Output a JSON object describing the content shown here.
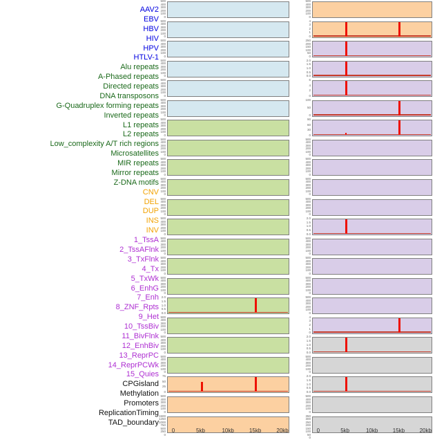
{
  "groups": {
    "virus": {
      "label_color": "#0000e0",
      "panel_bg": "#d5e8f0"
    },
    "repeat": {
      "label_color": "#1a691a",
      "panel_bg": "#c9e0a2"
    },
    "structural_variant": {
      "label_color": "#f2a202",
      "panel_bg": "#fcd0a1"
    },
    "chromatin_state": {
      "label_color": "#ae2fd2",
      "panel_bg": "#d9cde8"
    },
    "regulatory": {
      "label_color": "#111111",
      "panel_bg": "#d6d6d6"
    }
  },
  "colors": {
    "spike_red": "#ee1100",
    "baseline_red": "#c43b2a",
    "panel_border": "#7f7f7f",
    "tick_text": "#666666",
    "axis_text": "#333333"
  },
  "chart_data": {
    "type": "line",
    "description": "44 mini signal-profile panels over a 0-20kb window, arranged in two columns of 22 (column-major order matching the 44 feature labels). Red spikes mark enrichment peaks at 5kb and 15kb.",
    "x_axis": {
      "ticks": [
        "0",
        "5kb",
        "10kb",
        "15kb",
        "20kb"
      ],
      "range_kb": [
        0,
        20
      ]
    },
    "layout_hint": {
      "columns": 2,
      "rows_per_column": 22,
      "order": "column-major"
    },
    "rows": [
      {
        "label": "AAV2",
        "group": "virus",
        "yticks": [
          "500",
          "400",
          "300",
          "200",
          "100",
          "0"
        ],
        "spikes": [],
        "baseline": false
      },
      {
        "label": "EBV",
        "group": "virus",
        "yticks": [
          "500",
          "400",
          "300",
          "200",
          "100",
          "0"
        ],
        "spikes": [],
        "baseline": false
      },
      {
        "label": "HBV",
        "group": "virus",
        "yticks": [
          "500",
          "400",
          "300",
          "200",
          "100",
          "0"
        ],
        "spikes": [],
        "baseline": false
      },
      {
        "label": "HIV",
        "group": "virus",
        "yticks": [
          "500",
          "400",
          "300",
          "200",
          "100",
          "0"
        ],
        "spikes": [],
        "baseline": false
      },
      {
        "label": "HPV",
        "group": "virus",
        "yticks": [
          "500",
          "400",
          "300",
          "200",
          "100",
          "0"
        ],
        "spikes": [],
        "baseline": false
      },
      {
        "label": "HTLV-1",
        "group": "virus",
        "yticks": [
          "500",
          "400",
          "300",
          "200",
          "100",
          "0"
        ],
        "spikes": [],
        "baseline": false
      },
      {
        "label": "Alu repeats",
        "group": "repeat",
        "yticks": [
          "500",
          "400",
          "300",
          "200",
          "100",
          "0"
        ],
        "spikes": [],
        "baseline": false
      },
      {
        "label": "A-Phased repeats",
        "group": "repeat",
        "yticks": [
          "500",
          "400",
          "300",
          "200",
          "100",
          "0"
        ],
        "spikes": [],
        "baseline": false
      },
      {
        "label": "Directed repeats",
        "group": "repeat",
        "yticks": [
          "500",
          "400",
          "300",
          "200",
          "100",
          "0"
        ],
        "spikes": [],
        "baseline": false
      },
      {
        "label": "DNA transposons",
        "group": "repeat",
        "yticks": [
          "500",
          "400",
          "300",
          "200",
          "100",
          "0"
        ],
        "spikes": [],
        "baseline": false
      },
      {
        "label": "G-Quadruplex forming repeats",
        "group": "repeat",
        "yticks": [
          "500",
          "400",
          "300",
          "200",
          "100",
          "0"
        ],
        "spikes": [],
        "baseline": false
      },
      {
        "label": "Inverted repeats",
        "group": "repeat",
        "yticks": [
          "500",
          "400",
          "300",
          "200",
          "100",
          "0"
        ],
        "spikes": [],
        "baseline": false
      },
      {
        "label": "L1 repeats",
        "group": "repeat",
        "yticks": [
          "500",
          "400",
          "300",
          "200",
          "100",
          "0"
        ],
        "spikes": [],
        "baseline": false
      },
      {
        "label": "L2 repeats",
        "group": "repeat",
        "yticks": [
          "500",
          "400",
          "300",
          "200",
          "100",
          "0"
        ],
        "spikes": [],
        "baseline": false
      },
      {
        "label": "Low_complexity A/T rich regions",
        "group": "repeat",
        "yticks": [
          "500",
          "400",
          "300",
          "200",
          "100",
          "0"
        ],
        "spikes": [],
        "baseline": false
      },
      {
        "label": "Microsatellites",
        "group": "repeat",
        "yticks": [
          "2.0",
          "1.5",
          "1.0",
          "0.5",
          "0.0"
        ],
        "spikes": [
          {
            "x_kb": 15,
            "rel_height": 1.0
          }
        ],
        "baseline": true
      },
      {
        "label": "MIR repeats",
        "group": "repeat",
        "yticks": [
          "500",
          "400",
          "300",
          "200",
          "100",
          "0"
        ],
        "spikes": [],
        "baseline": false
      },
      {
        "label": "Mirror repeats",
        "group": "repeat",
        "yticks": [
          "500",
          "400",
          "300",
          "200",
          "100",
          "0"
        ],
        "spikes": [],
        "baseline": false
      },
      {
        "label": "Z-DNA motifs",
        "group": "repeat",
        "yticks": [
          "500",
          "400",
          "300",
          "200",
          "100",
          "0"
        ],
        "spikes": [],
        "baseline": false
      },
      {
        "label": "CNV",
        "group": "structural_variant",
        "yticks": [
          "75",
          "50",
          "25",
          "0"
        ],
        "spikes": [
          {
            "x_kb": 5,
            "rel_height": 0.65
          },
          {
            "x_kb": 15,
            "rel_height": 1.0
          }
        ],
        "baseline": true
      },
      {
        "label": "DEL",
        "group": "structural_variant",
        "yticks": [
          "500",
          "400",
          "300",
          "200",
          "100",
          "0"
        ],
        "spikes": [],
        "baseline": false
      },
      {
        "label": "DUP",
        "group": "structural_variant",
        "yticks": [
          "1500",
          "1250",
          "1000",
          "750",
          "500",
          "250",
          "0"
        ],
        "spikes": [],
        "baseline": false
      },
      {
        "label": "INS",
        "group": "structural_variant",
        "yticks": [
          "500",
          "400",
          "300",
          "200",
          "100",
          "0"
        ],
        "spikes": [],
        "baseline": false
      },
      {
        "label": "INV",
        "group": "structural_variant",
        "yticks": [
          "4",
          "3",
          "2",
          "1",
          "0"
        ],
        "spikes": [
          {
            "x_kb": 5,
            "rel_height": 1.0
          },
          {
            "x_kb": 15,
            "rel_height": 1.0
          }
        ],
        "baseline": true
      },
      {
        "label": "1_TssA",
        "group": "chromatin_state",
        "yticks": [
          "250",
          "200",
          "150",
          "100",
          "50",
          "0"
        ],
        "spikes": [
          {
            "x_kb": 5,
            "rel_height": 1.0
          }
        ],
        "baseline": true
      },
      {
        "label": "2_TssAFlnk",
        "group": "chromatin_state",
        "yticks": [
          "2.0",
          "1.5",
          "1.0",
          "0.5",
          "0.0"
        ],
        "spikes": [
          {
            "x_kb": 5,
            "rel_height": 1.0
          }
        ],
        "baseline": true
      },
      {
        "label": "3_TxFlnk",
        "group": "chromatin_state",
        "yticks": [
          "6",
          "4",
          "2",
          "0"
        ],
        "spikes": [
          {
            "x_kb": 5,
            "rel_height": 1.0
          }
        ],
        "baseline": true
      },
      {
        "label": "4_Tx",
        "group": "chromatin_state",
        "yticks": [
          "100",
          "50",
          "0"
        ],
        "spikes": [
          {
            "x_kb": 15,
            "rel_height": 1.0
          }
        ],
        "baseline": true
      },
      {
        "label": "5_TxWk",
        "group": "chromatin_state",
        "yticks": [
          "90",
          "60",
          "30",
          "0"
        ],
        "spikes": [
          {
            "x_kb": 5,
            "rel_height": 0.15
          },
          {
            "x_kb": 15,
            "rel_height": 1.0
          }
        ],
        "baseline": true
      },
      {
        "label": "6_EnhG",
        "group": "chromatin_state",
        "yticks": [
          "500",
          "400",
          "300",
          "200",
          "100",
          "0"
        ],
        "spikes": [],
        "baseline": false
      },
      {
        "label": "7_Enh",
        "group": "chromatin_state",
        "yticks": [
          "500",
          "400",
          "300",
          "200",
          "100",
          "0"
        ],
        "spikes": [],
        "baseline": false
      },
      {
        "label": "8_ZNF_Rpts",
        "group": "chromatin_state",
        "yticks": [
          "500",
          "400",
          "300",
          "200",
          "100",
          "0"
        ],
        "spikes": [],
        "baseline": false
      },
      {
        "label": "9_Het",
        "group": "chromatin_state",
        "yticks": [
          "500",
          "400",
          "300",
          "200",
          "100",
          "0"
        ],
        "spikes": [],
        "baseline": false
      },
      {
        "label": "10_TssBiv",
        "group": "chromatin_state",
        "yticks": [
          "2.0",
          "1.5",
          "1.0",
          "0.5",
          "0.0"
        ],
        "spikes": [
          {
            "x_kb": 5,
            "rel_height": 1.0
          }
        ],
        "baseline": true
      },
      {
        "label": "11_BivFlnk",
        "group": "chromatin_state",
        "yticks": [
          "500",
          "400",
          "300",
          "200",
          "100",
          "0"
        ],
        "spikes": [],
        "baseline": false
      },
      {
        "label": "12_EnhBiv",
        "group": "chromatin_state",
        "yticks": [
          "500",
          "400",
          "300",
          "200",
          "100",
          "0"
        ],
        "spikes": [],
        "baseline": false
      },
      {
        "label": "13_ReprPC",
        "group": "chromatin_state",
        "yticks": [
          "500",
          "400",
          "300",
          "200",
          "100",
          "0"
        ],
        "spikes": [],
        "baseline": false
      },
      {
        "label": "14_ReprPCWk",
        "group": "chromatin_state",
        "yticks": [
          "500",
          "400",
          "300",
          "200",
          "100",
          "0"
        ],
        "spikes": [],
        "baseline": false
      },
      {
        "label": "15_Quies",
        "group": "chromatin_state",
        "yticks": [
          "4",
          "3",
          "2",
          "1",
          "0"
        ],
        "spikes": [
          {
            "x_kb": 15,
            "rel_height": 1.0
          }
        ],
        "baseline": true
      },
      {
        "label": "CPGisland",
        "group": "regulatory",
        "yticks": [
          "2.0",
          "1.5",
          "1.0",
          "0.5",
          "0.0"
        ],
        "spikes": [
          {
            "x_kb": 5,
            "rel_height": 1.0
          }
        ],
        "baseline": true
      },
      {
        "label": "Methylation",
        "group": "regulatory",
        "yticks": [
          "500",
          "400",
          "300",
          "200",
          "100",
          "0"
        ],
        "spikes": [],
        "baseline": false
      },
      {
        "label": "Promoters",
        "group": "regulatory",
        "yticks": [
          "2.0",
          "1.5",
          "1.0",
          "0.5",
          "0.0"
        ],
        "spikes": [
          {
            "x_kb": 5,
            "rel_height": 1.0
          }
        ],
        "baseline": true
      },
      {
        "label": "ReplicationTiming",
        "group": "regulatory",
        "yticks": [
          "500",
          "400",
          "300",
          "200",
          "100",
          "0"
        ],
        "spikes": [],
        "baseline": false
      },
      {
        "label": "TAD_boundary",
        "group": "regulatory",
        "yticks": [
          "350",
          "300",
          "250",
          "200",
          "150",
          "100",
          "50",
          "0"
        ],
        "spikes": [],
        "baseline": false
      }
    ]
  }
}
